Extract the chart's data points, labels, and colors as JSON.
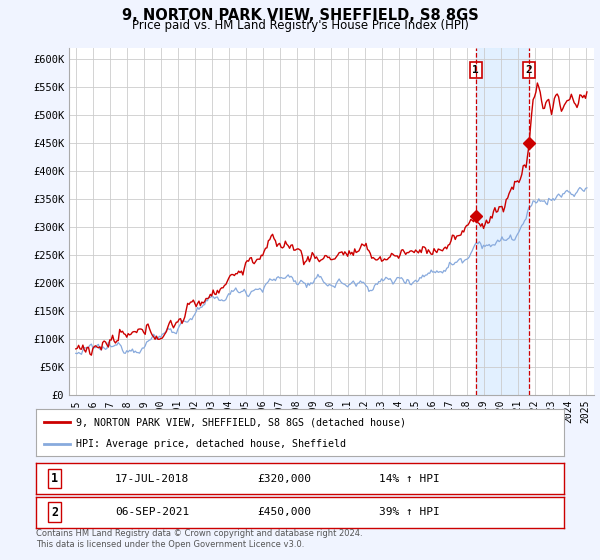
{
  "title": "9, NORTON PARK VIEW, SHEFFIELD, S8 8GS",
  "subtitle": "Price paid vs. HM Land Registry's House Price Index (HPI)",
  "legend_red": "9, NORTON PARK VIEW, SHEFFIELD, S8 8GS (detached house)",
  "legend_blue": "HPI: Average price, detached house, Sheffield",
  "footnote": "Contains HM Land Registry data © Crown copyright and database right 2024.\nThis data is licensed under the Open Government Licence v3.0.",
  "sale1_date": "17-JUL-2018",
  "sale1_price": 320000,
  "sale1_label": "14% ↑ HPI",
  "sale2_date": "06-SEP-2021",
  "sale2_price": 450000,
  "sale2_label": "39% ↑ HPI",
  "ylim": [
    0,
    620000
  ],
  "yticks": [
    0,
    50000,
    100000,
    150000,
    200000,
    250000,
    300000,
    350000,
    400000,
    450000,
    500000,
    550000,
    600000
  ],
  "ytick_labels": [
    "£0",
    "£50K",
    "£100K",
    "£150K",
    "£200K",
    "£250K",
    "£300K",
    "£350K",
    "£400K",
    "£450K",
    "£500K",
    "£550K",
    "£600K"
  ],
  "bg_color": "#f0f4ff",
  "plot_bg": "#ffffff",
  "red_color": "#cc0000",
  "blue_color": "#88aadd",
  "shade_color": "#ddeeff",
  "marker_color": "#cc0000",
  "vline_color": "#cc0000",
  "grid_color": "#cccccc",
  "sale1_year": 2018.54,
  "sale2_year": 2021.68,
  "xlim_min": 1994.6,
  "xlim_max": 2025.5
}
